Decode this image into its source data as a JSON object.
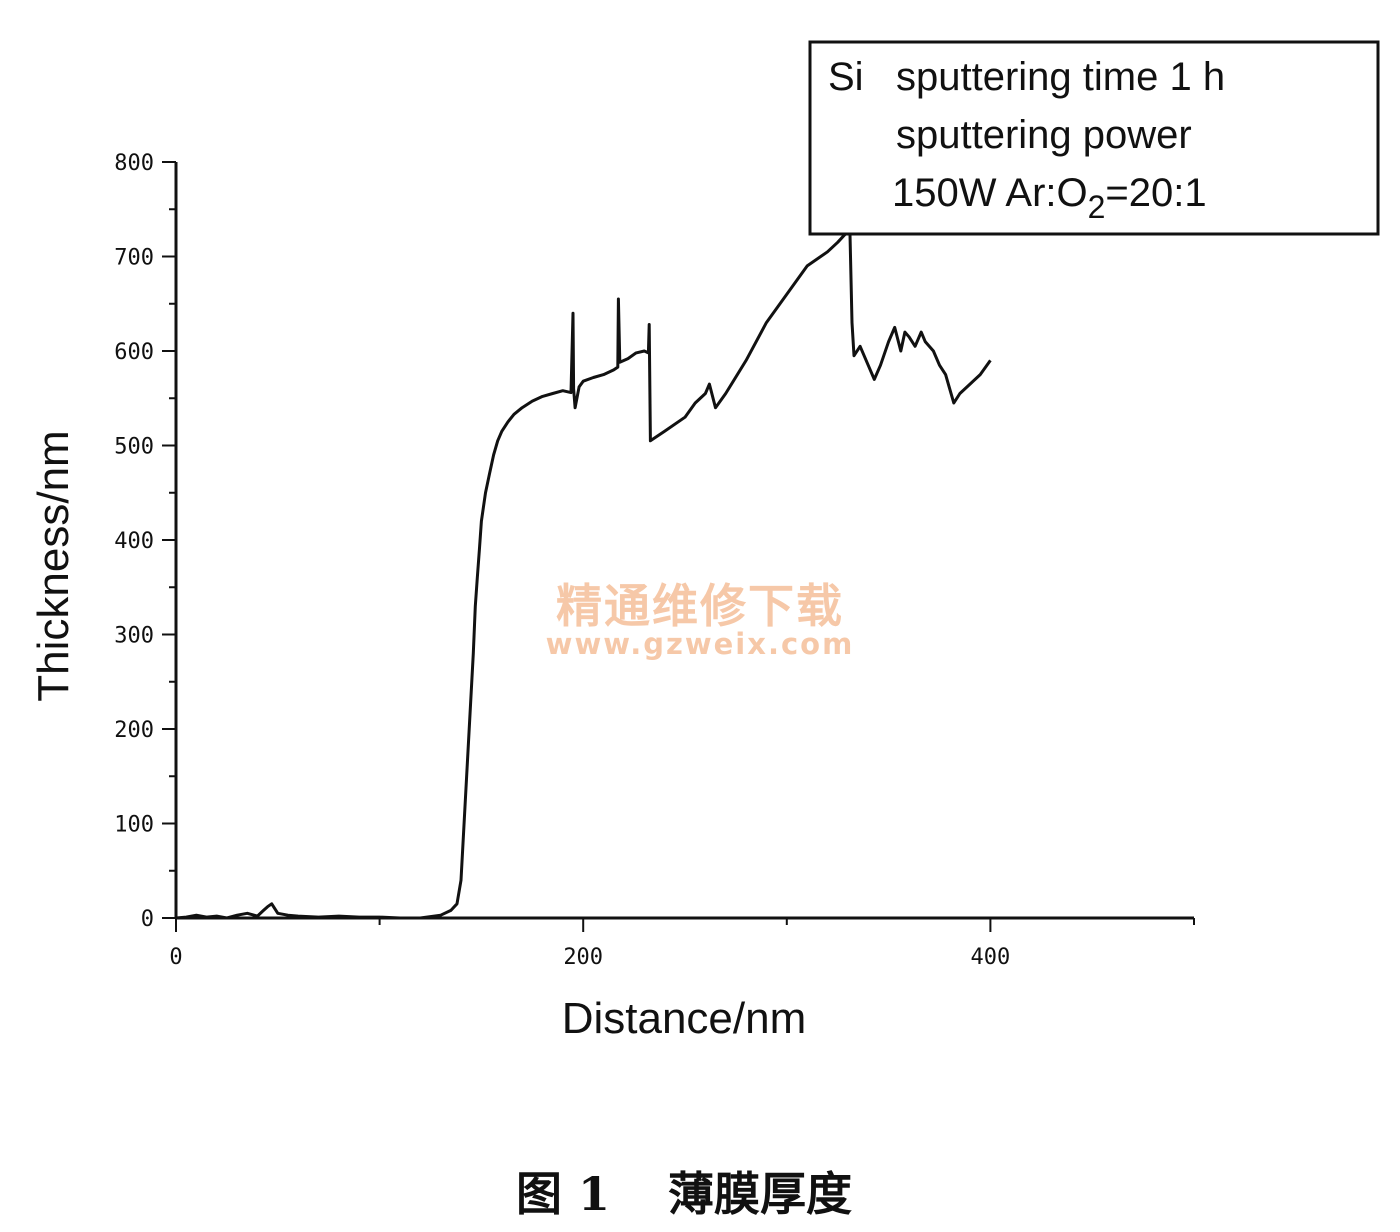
{
  "chart_data": {
    "type": "line",
    "xlabel": "Distance/nm",
    "ylabel": "Thickness/nm",
    "xlim": [
      0,
      500
    ],
    "ylim": [
      0,
      800
    ],
    "xticks": [
      0,
      200,
      400
    ],
    "yticks": [
      0,
      100,
      200,
      300,
      400,
      500,
      600,
      700,
      800
    ],
    "grid": false,
    "legend_position": "top-right",
    "legend": {
      "line1_prefix": "Si",
      "line1": "sputtering time 1 h",
      "line2": "sputtering power",
      "line3_a": "150W Ar:O",
      "line3_sub": "2",
      "line3_b": "=20:1"
    },
    "series": [
      {
        "color": "#111111",
        "x": [
          0,
          5,
          10,
          15,
          20,
          25,
          30,
          35,
          40,
          43,
          45,
          47,
          50,
          55,
          60,
          70,
          80,
          90,
          100,
          110,
          120,
          130,
          135,
          138,
          140,
          142,
          144,
          146,
          147,
          148,
          149,
          150,
          152,
          154,
          156,
          158,
          160,
          163,
          166,
          170,
          175,
          180,
          185,
          190,
          194,
          195,
          195.3,
          196,
          198,
          200,
          205,
          210,
          215,
          217,
          217.3,
          218,
          222,
          226,
          230,
          232,
          232.4,
          233,
          240,
          250,
          255,
          260,
          262,
          265,
          270,
          280,
          290,
          300,
          310,
          320,
          325,
          328,
          331,
          332,
          333,
          336,
          340,
          343,
          346,
          350,
          353,
          356,
          358,
          360,
          363,
          366,
          368,
          372,
          375,
          378,
          380,
          382,
          385,
          390,
          395,
          400
        ],
        "y": [
          0,
          1,
          3,
          1,
          2,
          0,
          3,
          5,
          2,
          8,
          12,
          15,
          5,
          3,
          2,
          1,
          2,
          1,
          1,
          0,
          0,
          3,
          8,
          15,
          40,
          120,
          200,
          280,
          330,
          360,
          390,
          420,
          450,
          470,
          490,
          505,
          515,
          525,
          533,
          540,
          547,
          552,
          555,
          558,
          556,
          640,
          560,
          540,
          562,
          568,
          572,
          575,
          580,
          583,
          655,
          588,
          592,
          598,
          600,
          598,
          628,
          505,
          515,
          530,
          545,
          555,
          565,
          540,
          555,
          590,
          630,
          660,
          690,
          705,
          715,
          722,
          728,
          630,
          595,
          605,
          585,
          570,
          585,
          610,
          625,
          600,
          620,
          615,
          605,
          620,
          610,
          600,
          585,
          575,
          560,
          545,
          555,
          565,
          575,
          590
        ]
      }
    ]
  },
  "caption": {
    "fig": "图 1",
    "text": "薄膜厚度"
  },
  "watermark": {
    "cn": "精通维修下载",
    "url": "www.gzweix.com"
  }
}
